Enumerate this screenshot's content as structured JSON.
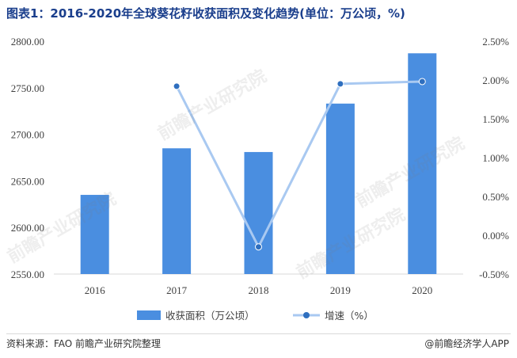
{
  "title": "图表1：2016-2020年全球葵花籽收获面积及变化趋势(单位：万公顷，%)",
  "source": "资料来源：FAO 前瞻产业研究院整理",
  "brand": "@前瞻经济学人APP",
  "watermark": "前瞻产业研究院",
  "colors": {
    "bar": "#4a8ee0",
    "line": "#a9c9f1",
    "marker": "#2f6fbf",
    "title": "#1a3e8c"
  },
  "chart_data": {
    "type": "bar",
    "categories": [
      "2016",
      "2017",
      "2018",
      "2019",
      "2020"
    ],
    "series": [
      {
        "name": "收获面积（万公顷）",
        "type": "bar",
        "axis": "left",
        "values": [
          2635,
          2685,
          2681,
          2733,
          2787
        ]
      },
      {
        "name": "增速（%）",
        "type": "line",
        "axis": "right",
        "values": [
          null,
          1.92,
          -0.15,
          1.95,
          1.98
        ]
      }
    ],
    "ylim_left": [
      2550,
      2800
    ],
    "yticks_left": [
      "2550.00",
      "2600.00",
      "2650.00",
      "2700.00",
      "2750.00",
      "2800.00"
    ],
    "ylim_right": [
      -0.5,
      2.5
    ],
    "yticks_right": [
      "-0.50%",
      "0.00%",
      "0.50%",
      "1.00%",
      "1.50%",
      "2.00%",
      "2.50%"
    ],
    "legend_position": "bottom",
    "grid": false
  }
}
